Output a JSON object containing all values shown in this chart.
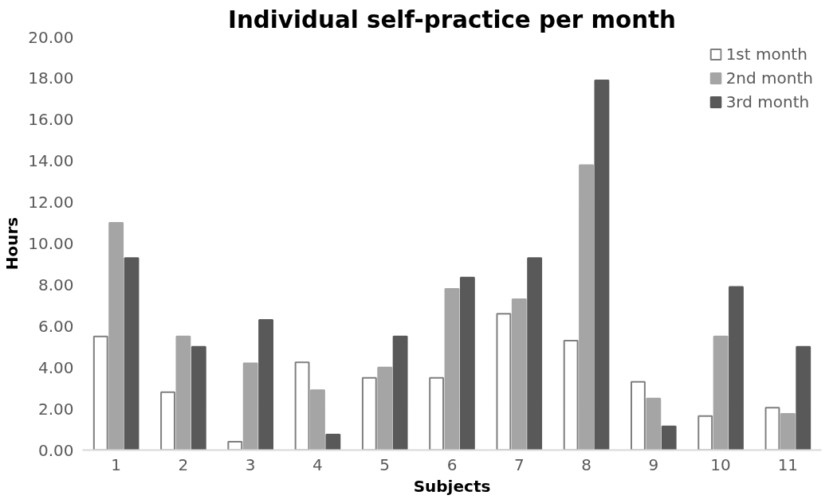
{
  "chart_data": {
    "type": "bar",
    "title": "Individual self-practice per month",
    "xlabel": "Subjects",
    "ylabel": "Hours",
    "categories": [
      "1",
      "2",
      "3",
      "4",
      "5",
      "6",
      "7",
      "8",
      "9",
      "10",
      "11"
    ],
    "series": [
      {
        "name": "1st month",
        "color": "#ffffff",
        "values": [
          5.5,
          2.8,
          0.4,
          4.25,
          3.5,
          3.5,
          6.6,
          5.3,
          3.3,
          1.65,
          2.05
        ]
      },
      {
        "name": "2nd month",
        "color": "#a5a5a5",
        "values": [
          11.0,
          5.5,
          4.2,
          2.9,
          4.0,
          7.8,
          7.3,
          13.8,
          2.5,
          5.5,
          1.75
        ]
      },
      {
        "name": "3rd month",
        "color": "#595959",
        "values": [
          9.3,
          5.0,
          6.3,
          0.75,
          5.5,
          8.35,
          9.3,
          17.9,
          1.15,
          7.9,
          5.0
        ]
      }
    ],
    "ylim": [
      0,
      20
    ],
    "yticks": [
      {
        "value": 0,
        "label": "0.00"
      },
      {
        "value": 2,
        "label": "2.00"
      },
      {
        "value": 4,
        "label": "4.00"
      },
      {
        "value": 6,
        "label": "6.00"
      },
      {
        "value": 8,
        "label": "8.00"
      },
      {
        "value": 10,
        "label": "10.00"
      },
      {
        "value": 12,
        "label": "12.00"
      },
      {
        "value": 14,
        "label": "14.00"
      },
      {
        "value": 16,
        "label": "16.00"
      },
      {
        "value": 18,
        "label": "18.00"
      },
      {
        "value": 20,
        "label": "20.00"
      }
    ],
    "grid": false,
    "legend": "top right"
  }
}
